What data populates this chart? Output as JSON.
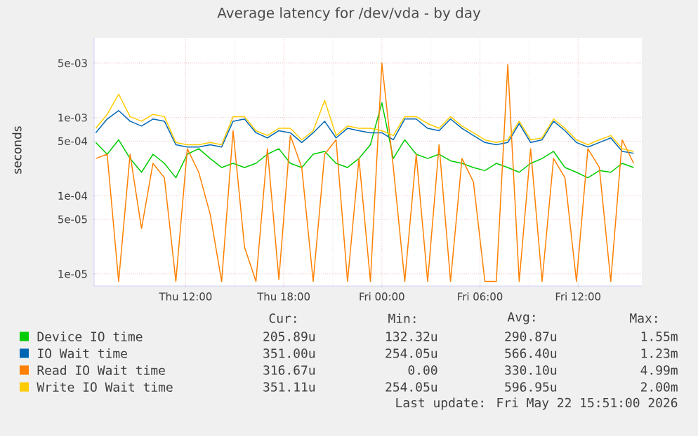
{
  "chart_data": {
    "type": "line",
    "title": "Average latency for /dev/vda - by day",
    "ylabel": "seconds",
    "x": [
      "2026-05-21T06:30",
      "2026-05-21T07:12",
      "2026-05-21T07:54",
      "2026-05-21T08:36",
      "2026-05-21T09:18",
      "2026-05-21T10:00",
      "2026-05-21T10:42",
      "2026-05-21T11:24",
      "2026-05-21T12:06",
      "2026-05-21T12:48",
      "2026-05-21T13:30",
      "2026-05-21T14:12",
      "2026-05-21T14:54",
      "2026-05-21T15:36",
      "2026-05-21T16:18",
      "2026-05-21T17:00",
      "2026-05-21T17:42",
      "2026-05-21T18:24",
      "2026-05-21T19:06",
      "2026-05-21T19:48",
      "2026-05-21T20:30",
      "2026-05-21T21:12",
      "2026-05-21T21:54",
      "2026-05-21T22:36",
      "2026-05-21T23:18",
      "2026-05-22T00:00",
      "2026-05-22T00:42",
      "2026-05-22T01:24",
      "2026-05-22T02:06",
      "2026-05-22T02:48",
      "2026-05-22T03:30",
      "2026-05-22T04:12",
      "2026-05-22T04:54",
      "2026-05-22T05:36",
      "2026-05-22T06:18",
      "2026-05-22T07:00",
      "2026-05-22T07:42",
      "2026-05-22T08:24",
      "2026-05-22T09:06",
      "2026-05-22T09:48",
      "2026-05-22T10:30",
      "2026-05-22T11:12",
      "2026-05-22T11:54",
      "2026-05-22T12:36",
      "2026-05-22T13:18",
      "2026-05-22T14:00",
      "2026-05-22T14:42",
      "2026-05-22T15:24"
    ],
    "series": [
      {
        "name": "Device IO time",
        "color": "#00cc00",
        "values": [
          0.00048,
          0.00034,
          0.00052,
          0.0003,
          0.0002,
          0.00034,
          0.00026,
          0.00017,
          0.00034,
          0.0004,
          0.0003,
          0.00023,
          0.00026,
          0.00023,
          0.00026,
          0.00034,
          0.0004,
          0.00026,
          0.00023,
          0.00034,
          0.00037,
          0.00026,
          0.00023,
          0.0003,
          0.00045,
          0.00155,
          0.0003,
          0.00052,
          0.00034,
          0.0003,
          0.00034,
          0.00028,
          0.00026,
          0.00023,
          0.00021,
          0.00026,
          0.00023,
          0.0002,
          0.00026,
          0.0003,
          0.00037,
          0.00023,
          0.0002,
          0.00017,
          0.00021,
          0.0002,
          0.00026,
          0.00023
        ]
      },
      {
        "name": "IO Wait time",
        "color": "#0066b3",
        "values": [
          0.00064,
          0.00096,
          0.00123,
          0.0009,
          0.00078,
          0.00096,
          0.0009,
          0.00045,
          0.00042,
          0.00042,
          0.00045,
          0.00042,
          0.0009,
          0.00096,
          0.00064,
          0.00055,
          0.00068,
          0.00064,
          0.00048,
          0.00064,
          0.0009,
          0.00055,
          0.00073,
          0.00068,
          0.00064,
          0.00064,
          0.00052,
          0.00096,
          0.00096,
          0.00073,
          0.00068,
          0.00096,
          0.00073,
          0.00059,
          0.00048,
          0.00045,
          0.00048,
          0.00084,
          0.00048,
          0.00052,
          0.0009,
          0.00068,
          0.00048,
          0.00042,
          0.00048,
          0.00055,
          0.00037,
          0.00035
        ]
      },
      {
        "name": "Read IO Wait time",
        "color": "#ff8000",
        "values": [
          0.0003,
          0.00034,
          8e-06,
          0.00034,
          3.8e-05,
          0.00026,
          0.00017,
          8e-06,
          0.0004,
          0.0002,
          5.8e-05,
          8e-06,
          0.00068,
          2.2e-05,
          8e-06,
          0.0004,
          8.5e-06,
          0.00059,
          0.00023,
          8e-06,
          0.00034,
          0.00052,
          8e-06,
          0.0003,
          8e-06,
          0.00499,
          0.00023,
          8e-06,
          0.00034,
          8e-06,
          0.00045,
          8e-06,
          0.0003,
          0.00015,
          8e-06,
          8e-06,
          0.0048,
          8e-06,
          0.0004,
          8e-06,
          0.0003,
          0.00017,
          8e-06,
          0.0004,
          0.00023,
          8e-06,
          0.00052,
          0.00026
        ]
      },
      {
        "name": "Write IO Wait time",
        "color": "#ffcc00",
        "values": [
          0.00073,
          0.0011,
          0.002,
          0.00103,
          0.0009,
          0.0011,
          0.00103,
          0.00048,
          0.00045,
          0.00045,
          0.00048,
          0.00045,
          0.00103,
          0.00103,
          0.00068,
          0.00059,
          0.00073,
          0.00073,
          0.00052,
          0.00068,
          0.00166,
          0.00059,
          0.00078,
          0.00073,
          0.00073,
          0.00068,
          0.00059,
          0.00103,
          0.00103,
          0.00084,
          0.00073,
          0.00103,
          0.00078,
          0.00064,
          0.00052,
          0.00048,
          0.00052,
          0.0009,
          0.00052,
          0.00055,
          0.00096,
          0.00073,
          0.00052,
          0.00045,
          0.00052,
          0.00059,
          0.0004,
          0.00037
        ]
      }
    ],
    "xlim": [
      "2026-05-21T06:24",
      "2026-05-22T15:54"
    ],
    "xticks": [
      {
        "value": "2026-05-21T12:00",
        "label": "Thu 12:00"
      },
      {
        "value": "2026-05-21T18:00",
        "label": "Thu 18:00"
      },
      {
        "value": "2026-05-22T00:00",
        "label": "Fri 00:00"
      },
      {
        "value": "2026-05-22T06:00",
        "label": "Fri 06:00"
      },
      {
        "value": "2026-05-22T12:00",
        "label": "Fri 12:00"
      }
    ],
    "ylim": [
      7e-06,
      0.0105
    ],
    "yticks": [
      {
        "value": 1e-05,
        "label": "1e-05"
      },
      {
        "value": 5e-05,
        "label": "5e-05"
      },
      {
        "value": 0.0001,
        "label": "1e-04"
      },
      {
        "value": 0.0005,
        "label": "5e-04"
      },
      {
        "value": 0.001,
        "label": "1e-03"
      },
      {
        "value": 0.005,
        "label": "5e-03"
      }
    ],
    "log": "y",
    "grid": true,
    "legend": "bottom",
    "marker": "none",
    "line_style": "solid",
    "annotations": [
      "Cur:",
      "Min:",
      "Avg:",
      "Max:",
      "205.89u",
      "132.32u",
      "290.87u",
      "1.55m",
      "351.00u",
      "254.05u",
      "566.40u",
      "1.23m",
      "316.67u",
      "0.00",
      "330.10u",
      "4.99m",
      "351.11u",
      "254.05u",
      "596.95u",
      "2.00m",
      "Last update: Fri May 22 15:51:00 2026"
    ]
  }
}
